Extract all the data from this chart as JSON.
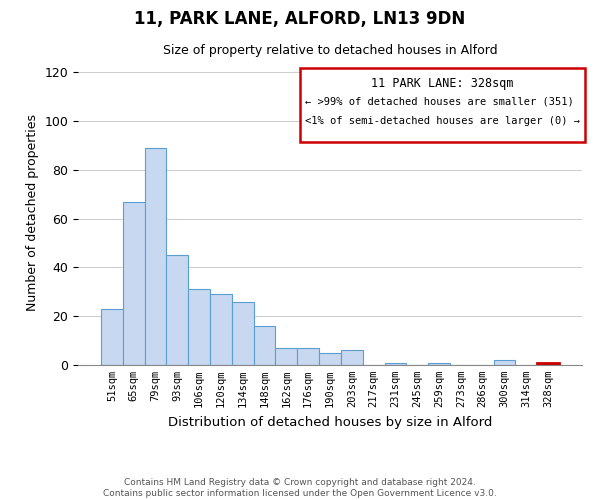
{
  "title": "11, PARK LANE, ALFORD, LN13 9DN",
  "subtitle": "Size of property relative to detached houses in Alford",
  "xlabel": "Distribution of detached houses by size in Alford",
  "ylabel": "Number of detached properties",
  "bar_labels": [
    "51sqm",
    "65sqm",
    "79sqm",
    "93sqm",
    "106sqm",
    "120sqm",
    "134sqm",
    "148sqm",
    "162sqm",
    "176sqm",
    "190sqm",
    "203sqm",
    "217sqm",
    "231sqm",
    "245sqm",
    "259sqm",
    "273sqm",
    "286sqm",
    "300sqm",
    "314sqm",
    "328sqm"
  ],
  "bar_values": [
    23,
    67,
    89,
    45,
    31,
    29,
    26,
    16,
    7,
    7,
    5,
    6,
    0,
    1,
    0,
    1,
    0,
    0,
    2,
    0,
    1
  ],
  "bar_color": "#c8d8f0",
  "bar_edge_color": "#5a9fd4",
  "highlight_bar_index": 20,
  "highlight_fill_color": "#c8d8f0",
  "highlight_edge_color": "#cc0000",
  "legend_title": "11 PARK LANE: 328sqm",
  "legend_line1": "← >99% of detached houses are smaller (351)",
  "legend_line2": "<1% of semi-detached houses are larger (0) →",
  "legend_box_edge_color": "#cc0000",
  "ylim": [
    0,
    125
  ],
  "yticks": [
    0,
    20,
    40,
    60,
    80,
    100,
    120
  ],
  "footer_line1": "Contains HM Land Registry data © Crown copyright and database right 2024.",
  "footer_line2": "Contains public sector information licensed under the Open Government Licence v3.0.",
  "bg_color": "#ffffff",
  "grid_color": "#cccccc"
}
